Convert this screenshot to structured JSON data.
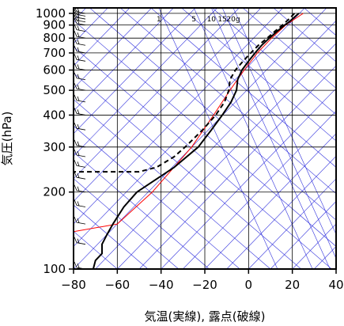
{
  "chart_data": {
    "type": "line",
    "subtype": "skew-T log-P emagram",
    "xlabel": "気温(実線), 露点(破線)",
    "ylabel": "気圧(hPa)",
    "xlim": [
      -80,
      40
    ],
    "ylim": [
      1050,
      100
    ],
    "y_scale": "log",
    "x_ticks": [
      "−80",
      "−60",
      "−40",
      "−20",
      "0",
      "20",
      "40"
    ],
    "x_tick_values": [
      -80,
      -60,
      -40,
      -20,
      0,
      20,
      40
    ],
    "y_ticks": [
      "100",
      "200",
      "300",
      "400",
      "500",
      "600",
      "700",
      "800",
      "900",
      "1000"
    ],
    "y_tick_values": [
      100,
      200,
      300,
      400,
      500,
      600,
      700,
      800,
      900,
      1000
    ],
    "mixing_ratio_labels": [
      "1",
      "5",
      "10",
      "15",
      "20g"
    ],
    "mixing_ratio_label_x": [
      -41,
      -25,
      -17,
      -12,
      -7
    ],
    "grid": true,
    "colors": {
      "background_lines": "#3333dd",
      "temperature": "#000000",
      "dewpoint": "#000000",
      "parcel": "#ff0000",
      "grid": "#000000"
    },
    "series": [
      {
        "kind": "temperature",
        "style": "solid",
        "points": [
          {
            "p": 1000,
            "t": 23
          },
          {
            "p": 975,
            "t": 21.5
          },
          {
            "p": 950,
            "t": 20
          },
          {
            "p": 925,
            "t": 18.5
          },
          {
            "p": 900,
            "t": 16.5
          },
          {
            "p": 850,
            "t": 13
          },
          {
            "p": 800,
            "t": 9.5
          },
          {
            "p": 750,
            "t": 6
          },
          {
            "p": 700,
            "t": 3
          },
          {
            "p": 650,
            "t": 0
          },
          {
            "p": 600,
            "t": -3
          },
          {
            "p": 550,
            "t": -5
          },
          {
            "p": 500,
            "t": -5.5
          },
          {
            "p": 450,
            "t": -8
          },
          {
            "p": 400,
            "t": -12
          },
          {
            "p": 350,
            "t": -17
          },
          {
            "p": 300,
            "t": -23
          },
          {
            "p": 250,
            "t": -34
          },
          {
            "p": 200,
            "t": -51
          },
          {
            "p": 175,
            "t": -57
          },
          {
            "p": 150,
            "t": -62
          },
          {
            "p": 135,
            "t": -65
          },
          {
            "p": 125,
            "t": -67
          },
          {
            "p": 115,
            "t": -67
          },
          {
            "p": 108,
            "t": -70
          },
          {
            "p": 100,
            "t": -71
          }
        ]
      },
      {
        "kind": "dewpoint",
        "style": "dashed",
        "points": [
          {
            "p": 1000,
            "t": 21
          },
          {
            "p": 950,
            "t": 18.5
          },
          {
            "p": 900,
            "t": 15.5
          },
          {
            "p": 850,
            "t": 12
          },
          {
            "p": 800,
            "t": 8.5
          },
          {
            "p": 750,
            "t": 4.5
          },
          {
            "p": 700,
            "t": 1
          },
          {
            "p": 650,
            "t": -2.5
          },
          {
            "p": 600,
            "t": -6
          },
          {
            "p": 550,
            "t": -8.5
          },
          {
            "p": 500,
            "t": -9
          },
          {
            "p": 450,
            "t": -11
          },
          {
            "p": 400,
            "t": -15
          },
          {
            "p": 350,
            "t": -21
          },
          {
            "p": 300,
            "t": -29
          },
          {
            "p": 275,
            "t": -34
          },
          {
            "p": 250,
            "t": -42
          },
          {
            "p": 240,
            "t": -50
          },
          {
            "p": 240,
            "t": -80
          }
        ]
      },
      {
        "kind": "parcel",
        "style": "solid",
        "points": [
          {
            "p": 1000,
            "t": 25
          },
          {
            "p": 900,
            "t": 17
          },
          {
            "p": 800,
            "t": 10.5
          },
          {
            "p": 700,
            "t": 4
          },
          {
            "p": 600,
            "t": -2
          },
          {
            "p": 500,
            "t": -8.5
          },
          {
            "p": 400,
            "t": -16
          },
          {
            "p": 300,
            "t": -26
          },
          {
            "p": 200,
            "t": -44
          },
          {
            "p": 150,
            "t": -60
          },
          {
            "p": 140,
            "t": -80
          }
        ]
      }
    ],
    "wind_barbs_present": true
  }
}
